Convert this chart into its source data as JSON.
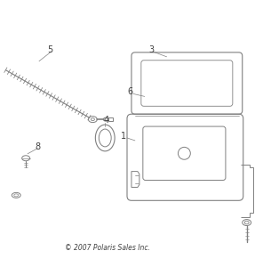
{
  "bg_color": "#ffffff",
  "line_color": "#808080",
  "text_color": "#404040",
  "copyright_text": "© 2007 Polaris Sales Inc.",
  "copyright_fontsize": 5.5,
  "label_fontsize": 7,
  "fig_width": 2.87,
  "fig_height": 3.0,
  "dpi": 100
}
